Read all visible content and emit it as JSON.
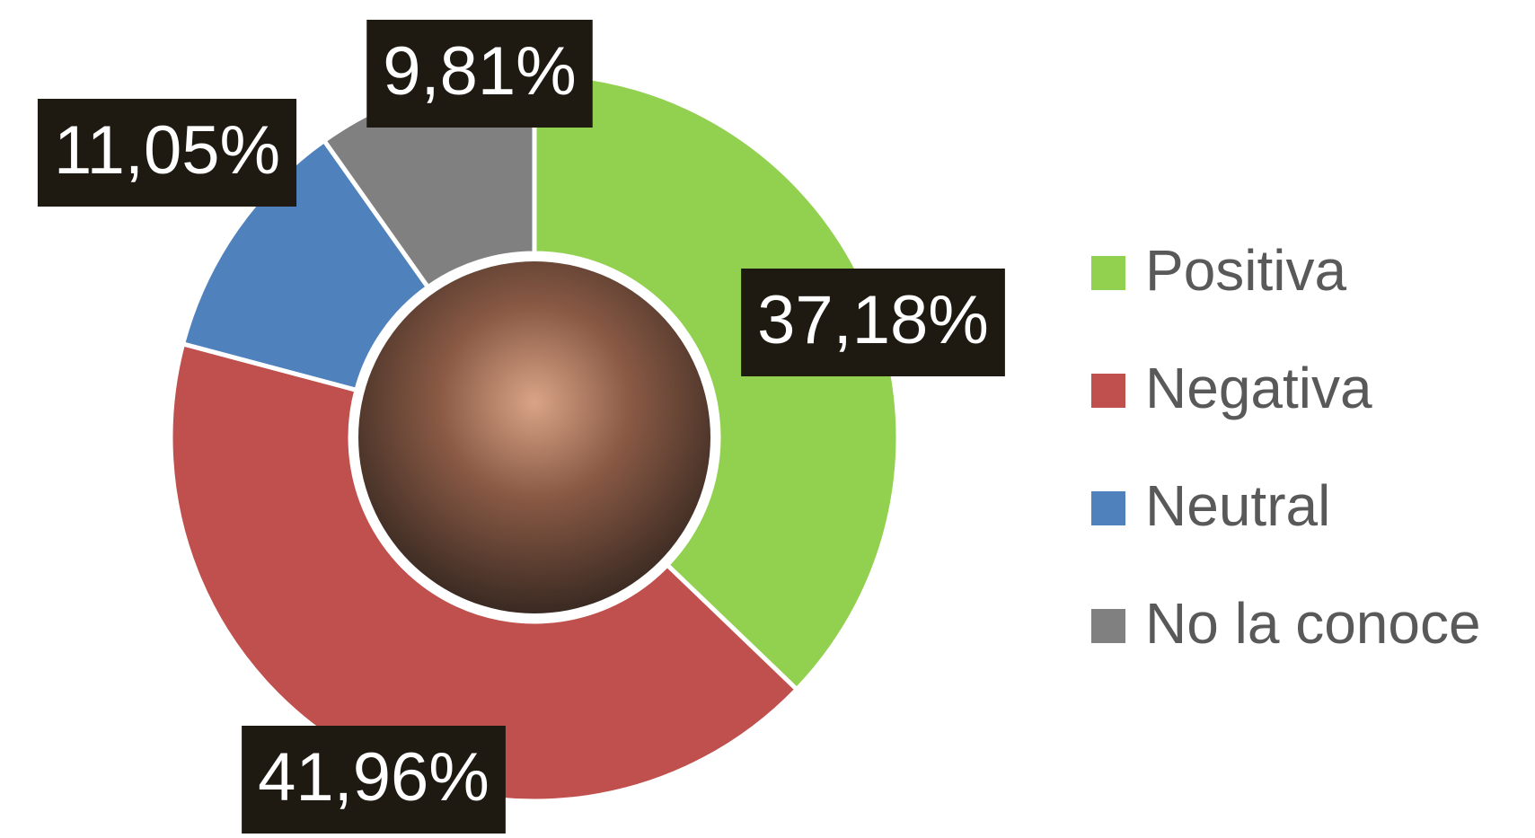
{
  "chart_data": {
    "type": "donut",
    "categories": [
      "Positiva",
      "Negativa",
      "Neutral",
      "No la conoce"
    ],
    "values": [
      37.18,
      41.96,
      11.05,
      9.81
    ],
    "value_labels": [
      "37,18%",
      "41,96%",
      "11,05%",
      "9,81%"
    ],
    "colors": [
      "#92d050",
      "#c0504d",
      "#4f81bd",
      "#808080"
    ],
    "legend": "right"
  }
}
